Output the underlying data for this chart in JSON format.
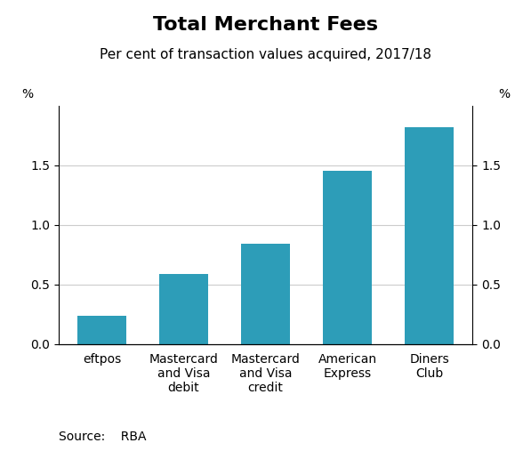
{
  "title": "Total Merchant Fees",
  "subtitle": "Per cent of transaction values acquired, 2017/18",
  "categories": [
    "eftpos",
    "Mastercard\nand Visa\ndebit",
    "Mastercard\nand Visa\ncredit",
    "American\nExpress",
    "Diners\nClub"
  ],
  "values": [
    0.24,
    0.59,
    0.84,
    1.45,
    1.82
  ],
  "bar_color": "#2d9db8",
  "ylim": [
    0,
    2.0
  ],
  "yticks": [
    0.0,
    0.5,
    1.0,
    1.5
  ],
  "ylabel_left": "%",
  "ylabel_right": "%",
  "source_text": "Source:    RBA",
  "background_color": "#ffffff",
  "title_fontsize": 16,
  "subtitle_fontsize": 11,
  "tick_fontsize": 10,
  "source_fontsize": 10
}
